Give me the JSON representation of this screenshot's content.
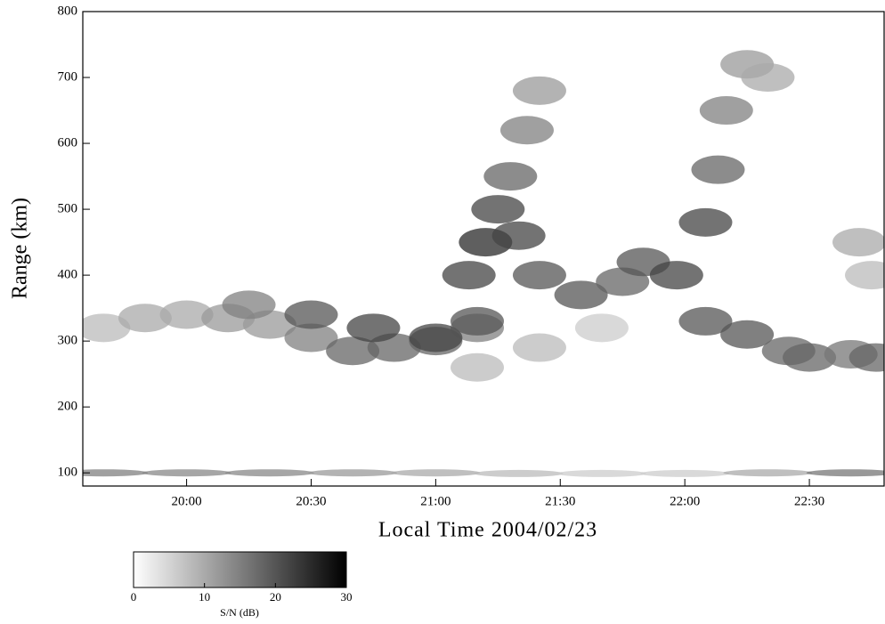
{
  "chart_data": {
    "type": "heatmap",
    "xlabel": "Local Time 2004/02/23",
    "ylabel": "Range (km)",
    "xlim": [
      1175,
      1368
    ],
    "ylim": [
      80,
      800
    ],
    "xticks": [
      {
        "value": 1200,
        "label": "20:00"
      },
      {
        "value": 1230,
        "label": "20:30"
      },
      {
        "value": 1260,
        "label": "21:00"
      },
      {
        "value": 1290,
        "label": "21:30"
      },
      {
        "value": 1320,
        "label": "22:00"
      },
      {
        "value": 1350,
        "label": "22:30"
      }
    ],
    "yticks": [
      100,
      200,
      300,
      400,
      500,
      600,
      700,
      800
    ],
    "colorbar": {
      "label": "S/N (dB)",
      "lim": [
        0,
        30
      ],
      "ticks": [
        0,
        10,
        20,
        30
      ]
    },
    "series": [
      {
        "x": [
          1180,
          1190,
          1200,
          1210,
          1220,
          1230,
          1240,
          1250,
          1260,
          1270
        ],
        "y": [
          320,
          335,
          340,
          335,
          325,
          305,
          285,
          290,
          300,
          320
        ],
        "values": [
          8,
          10,
          10,
          12,
          12,
          15,
          18,
          18,
          18,
          15
        ]
      },
      {
        "x": [
          1215,
          1230,
          1245,
          1260,
          1270
        ],
        "y": [
          355,
          340,
          320,
          305,
          330
        ],
        "values": [
          15,
          20,
          22,
          22,
          20
        ]
      },
      {
        "x": [
          1268,
          1272,
          1275,
          1278,
          1282,
          1285
        ],
        "y": [
          400,
          450,
          500,
          550,
          620,
          680
        ],
        "values": [
          22,
          25,
          22,
          18,
          15,
          12
        ]
      },
      {
        "x": [
          1280,
          1285,
          1295,
          1305,
          1310,
          1318,
          1325,
          1328,
          1330,
          1335,
          1340
        ],
        "y": [
          460,
          400,
          370,
          390,
          420,
          400,
          480,
          560,
          650,
          720,
          700
        ],
        "values": [
          22,
          20,
          20,
          18,
          20,
          22,
          22,
          18,
          15,
          12,
          10
        ]
      },
      {
        "x": [
          1325,
          1335,
          1345,
          1350,
          1360,
          1366
        ],
        "y": [
          330,
          310,
          285,
          275,
          280,
          275
        ],
        "values": [
          20,
          20,
          18,
          18,
          16,
          18
        ]
      },
      {
        "x": [
          1180,
          1200,
          1220,
          1240,
          1260,
          1280,
          1300,
          1320,
          1340,
          1360
        ],
        "y": [
          100,
          100,
          100,
          100,
          100,
          99,
          99,
          99,
          100,
          100
        ],
        "values": [
          15,
          14,
          14,
          12,
          10,
          8,
          6,
          6,
          10,
          16
        ]
      },
      {
        "x": [
          1270,
          1285,
          1300
        ],
        "y": [
          260,
          290,
          320
        ],
        "values": [
          8,
          8,
          6
        ]
      },
      {
        "x": [
          1362,
          1365
        ],
        "y": [
          450,
          400
        ],
        "values": [
          10,
          8
        ]
      }
    ]
  }
}
